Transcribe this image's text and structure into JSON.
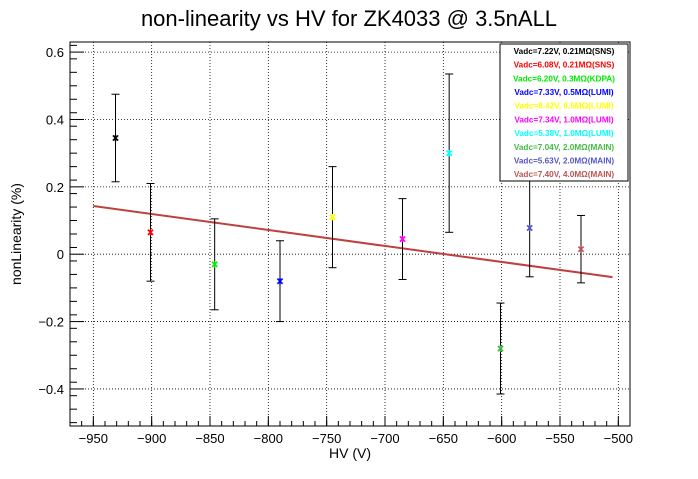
{
  "chart_data": {
    "type": "scatter",
    "title": "non-linearity vs HV for ZK4033 @ 3.5nALL",
    "xlabel": "HV (V)",
    "ylabel": "nonLinearity (%)",
    "xlim": [
      -970,
      -490
    ],
    "ylim": [
      -0.51,
      0.63
    ],
    "grid": true,
    "x_ticks": [
      -950,
      -900,
      -850,
      -800,
      -750,
      -700,
      -650,
      -600,
      -550,
      -500
    ],
    "x_tick_labels": [
      "−950",
      "−900",
      "−850",
      "−800",
      "−750",
      "−700",
      "−650",
      "−600",
      "−550",
      "−500"
    ],
    "y_ticks": [
      -0.4,
      -0.2,
      0,
      0.2,
      0.4,
      0.6
    ],
    "y_tick_labels": [
      "−0.4",
      "−0.2",
      "0",
      "0.2",
      "0.4",
      "0.6"
    ],
    "legend_position": "top-right",
    "series": [
      {
        "name": "Vadc=7.22V, 0.21MΩ(SNS)",
        "color": "#000000",
        "x": -931,
        "y": 0.345,
        "err": 0.13
      },
      {
        "name": "Vadc=6.08V, 0.21MΩ(SNS)",
        "color": "#ff0000",
        "x": -901,
        "y": 0.065,
        "err": 0.145
      },
      {
        "name": "Vadc=6.20V, 0.3MΩ(KDPA)",
        "color": "#00ee00",
        "x": -846,
        "y": -0.03,
        "err": 0.135
      },
      {
        "name": "Vadc=7.33V, 0.5MΩ(LUMI)",
        "color": "#0000ff",
        "x": -790,
        "y": -0.08,
        "err": 0.12
      },
      {
        "name": "Vadc=8.42V, 0.5MΩ(LUMI)",
        "color": "#ffff00",
        "x": -745,
        "y": 0.11,
        "err": 0.15
      },
      {
        "name": "Vadc=7.34V, 1.0MΩ(LUMI)",
        "color": "#ff00ff",
        "x": -685,
        "y": 0.045,
        "err": 0.12
      },
      {
        "name": "Vadc=5.38V, 1.0MΩ(LUMI)",
        "color": "#00ffff",
        "x": -645,
        "y": 0.3,
        "err": 0.235
      },
      {
        "name": "Vadc=7.04V, 2.0MΩ(MAIN)",
        "color": "#44bb44",
        "x": -601,
        "y": -0.28,
        "err": 0.135
      },
      {
        "name": "Vadc=5.63V, 2.0MΩ(MAIN)",
        "color": "#5555cc",
        "x": -576,
        "y": 0.078,
        "err": 0.145
      },
      {
        "name": "Vadc=7.40V, 4.0MΩ(MAIN)",
        "color": "#bb5555",
        "x": -532,
        "y": 0.015,
        "err": 0.1
      }
    ],
    "fit_line": {
      "color": "#c04040",
      "x": [
        -950,
        -505
      ],
      "y": [
        0.143,
        -0.068
      ]
    }
  }
}
